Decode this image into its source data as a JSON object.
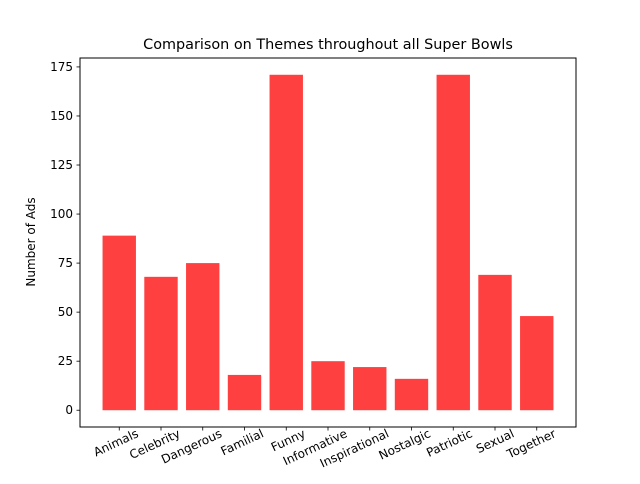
{
  "chart_data": {
    "type": "bar",
    "title": "Comparison on Themes throughout all Super Bowls",
    "xlabel": "",
    "ylabel": "Number of Ads",
    "categories": [
      "Animals",
      "Celebrity",
      "Dangerous",
      "Familial",
      "Funny",
      "Informative",
      "Inspirational",
      "Nostalgic",
      "Patriotic",
      "Sexual",
      "Together"
    ],
    "values": [
      89,
      68,
      75,
      18,
      171,
      25,
      22,
      16,
      171,
      69,
      48
    ],
    "ylim": [
      -8.55,
      179.55
    ],
    "yticks": [
      0,
      25,
      50,
      75,
      100,
      125,
      150,
      175
    ],
    "grid": false,
    "legend": "none",
    "bar_color": "#ff4040",
    "x_tick_rotation_deg": 25
  }
}
